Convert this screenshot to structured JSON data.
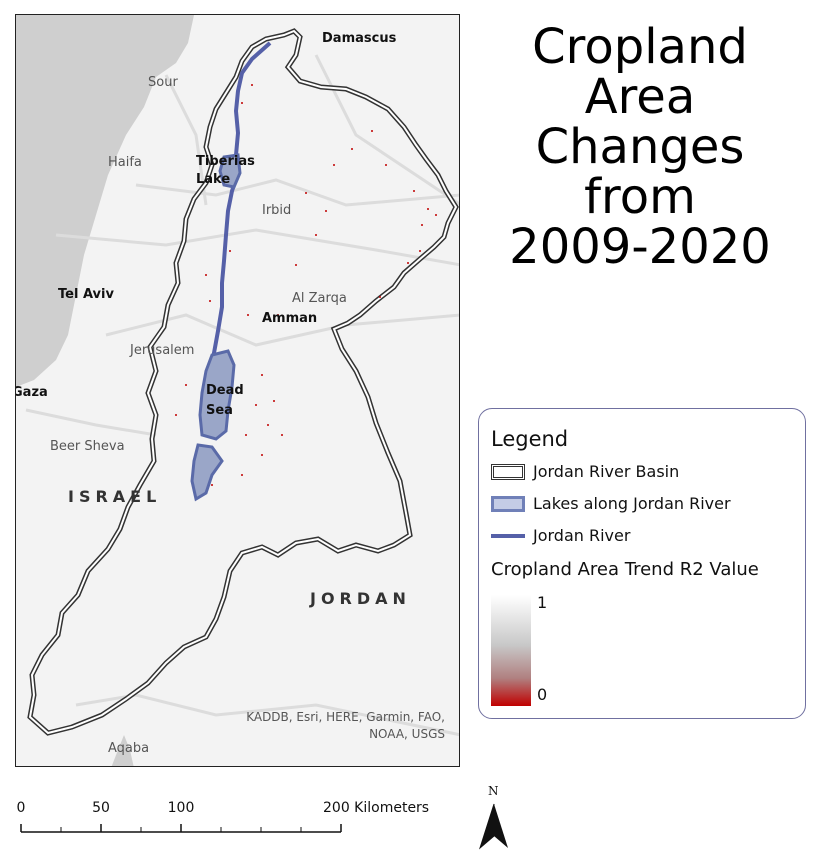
{
  "title_lines": [
    "Cropland",
    "Area",
    "Changes",
    "from",
    "2009-2020"
  ],
  "map_labels": {
    "damascus": "Damascus",
    "sour": "Sour",
    "haifa": "Haifa",
    "tiberias_lake": "Tiberias\nLake",
    "irbid": "Irbid",
    "tel_aviv": "Tel Aviv",
    "al_zarqa": "Al Zarqa",
    "amman": "Amman",
    "jerusalem": "Jerusalem",
    "gaza": "Gaza",
    "dead_sea": "Dead\nSea",
    "beer_sheva": "Beer Sheva",
    "israel": "ISRAEL",
    "jordan": "JORDAN",
    "aqaba": "Aqaba"
  },
  "attribution": "KADDB, Esri, HERE, Garmin, FAO,\nNOAA, USGS",
  "legend": {
    "heading": "Legend",
    "basin_label": "Jordan River Basin",
    "lakes_label": "Lakes along Jordan River",
    "river_label": "Jordan River",
    "ramp_title": "Cropland Area Trend R2 Value",
    "ramp_high": "1",
    "ramp_low": "0"
  },
  "scale_bar": {
    "ticks": [
      "0",
      "50",
      "100",
      "200 Kilometers"
    ],
    "values_km": [
      0,
      50,
      100,
      200
    ]
  },
  "north_arrow": {
    "label": "N"
  },
  "colors": {
    "sea": "#cfcfcf",
    "land": "#f3f3f3",
    "basin_outline": "#333333",
    "lake_fill": "#9aa6c8",
    "lake_outline": "#5a6aa8",
    "river": "#5560a8",
    "cropland_low": "#c00000"
  }
}
